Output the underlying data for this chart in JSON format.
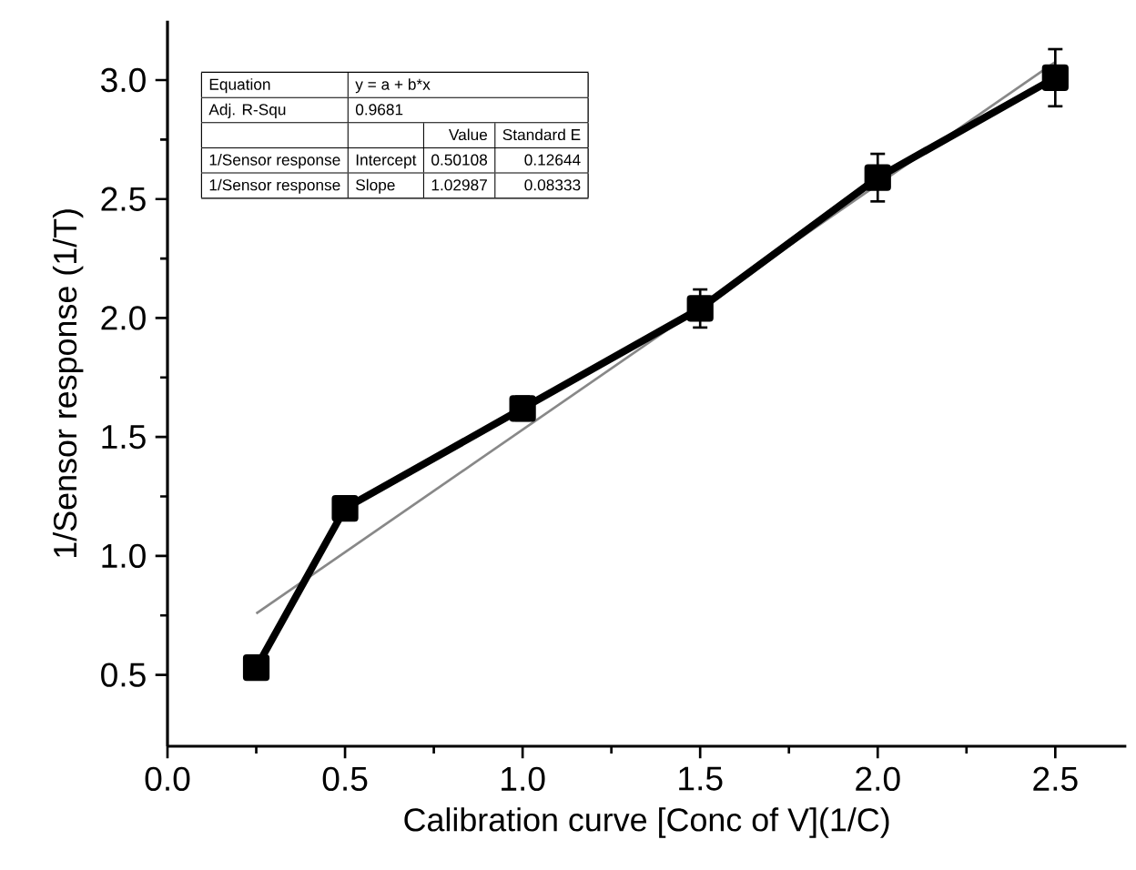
{
  "chart_data": {
    "type": "line",
    "xlabel": "Calibration curve [Conc of V](1/C)",
    "ylabel": "1/Sensor response (1/T)",
    "xlim": [
      0,
      2.7
    ],
    "ylim": [
      0.2,
      3.25
    ],
    "xticks": [
      {
        "value": 0,
        "label": "0.0"
      },
      0.5,
      {
        "value": 1,
        "label": "1.0"
      },
      1.5,
      {
        "value": 2,
        "label": "2.0"
      },
      2.5
    ],
    "yticks": [
      0.5,
      {
        "value": 1,
        "label": "1.0"
      },
      1.5,
      {
        "value": 2,
        "label": "2.0"
      },
      2.5,
      {
        "value": 3,
        "label": "3.0"
      }
    ],
    "series": [
      {
        "color": "#888888",
        "marker": "none",
        "x": [
          0.25,
          2.5
        ],
        "values": [
          0.758,
          3.076
        ]
      },
      {
        "color": "#000000",
        "marker": "square",
        "x": [
          0.25,
          0.5,
          1.0,
          1.5,
          2.0,
          2.5
        ],
        "values": [
          0.53,
          1.2,
          1.62,
          2.04,
          2.59,
          3.01
        ],
        "errors": [
          0.03,
          0.03,
          0.05,
          0.08,
          0.1,
          0.12
        ]
      }
    ],
    "annotations": [
      "Equation",
      "y = a + b*x",
      "Adj. R-Squ",
      "0.9681",
      "Value",
      "Standard E",
      "1/Sensor response",
      "Intercept",
      "0.50108",
      "0.12644",
      "1/Sensor response",
      "Slope",
      "1.02987",
      "0.08333"
    ]
  }
}
